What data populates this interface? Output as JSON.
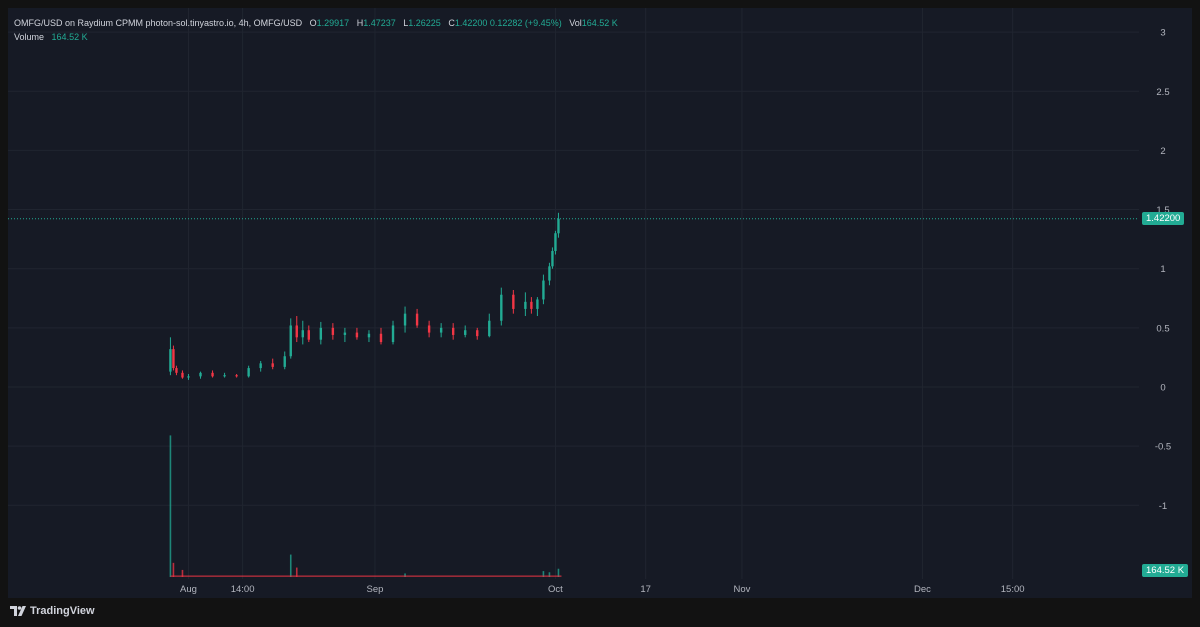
{
  "header": {
    "symbol_line": "OMFG/USD on Raydium CPMM photon-sol.tinyastro.io, 4h, OMFG/USD",
    "o_label": "O",
    "o_value": "1.29917",
    "h_label": "H",
    "h_value": "1.47237",
    "l_label": "L",
    "l_value": "1.26225",
    "c_label": "C",
    "c_value": "1.42200",
    "change": "0.12282 (+9.45%)",
    "vol_label": "Vol",
    "vol_value": "164.52 K",
    "volume_label": "Volume",
    "volume_value": "164.52 K"
  },
  "brand": {
    "name": "TradingView"
  },
  "colors": {
    "background": "#121212",
    "plot_background": "#161a25",
    "grid": "#202530",
    "up": "#22ab94",
    "down": "#f23645",
    "axis_text": "#b2b5be"
  },
  "price_tags": {
    "last_price": "1.42200",
    "last_volume": "164.52 K"
  },
  "chart_data": {
    "type": "candlestick",
    "y_axis": {
      "ticks": [
        3,
        2.5,
        2,
        1.5,
        1,
        0.5,
        0,
        -0.5,
        -1
      ],
      "tick_labels": [
        "3",
        "2.5",
        "2",
        "1.5",
        "1",
        "0.5",
        "0",
        "-0.5",
        "-1"
      ],
      "range": [
        -1.5,
        3.2
      ]
    },
    "x_axis": {
      "labels": [
        "Aug",
        "14:00",
        "Sep",
        "Oct",
        "17",
        "Nov",
        "Dec",
        "15:00"
      ],
      "label_days": [
        0,
        9,
        31,
        61,
        76,
        92,
        122,
        137
      ],
      "range_days": [
        -30,
        158
      ]
    },
    "grid": true,
    "ohlc_points": [
      {
        "day": -3.0,
        "open": 0.13,
        "high": 0.42,
        "low": 0.1,
        "close": 0.32
      },
      {
        "day": -2.5,
        "open": 0.32,
        "high": 0.35,
        "low": 0.14,
        "close": 0.16
      },
      {
        "day": -2.0,
        "open": 0.16,
        "high": 0.18,
        "low": 0.1,
        "close": 0.12
      },
      {
        "day": -1.0,
        "open": 0.12,
        "high": 0.14,
        "low": 0.07,
        "close": 0.08
      },
      {
        "day": 0.0,
        "open": 0.08,
        "high": 0.11,
        "low": 0.06,
        "close": 0.09
      },
      {
        "day": 2.0,
        "open": 0.09,
        "high": 0.13,
        "low": 0.07,
        "close": 0.12
      },
      {
        "day": 4.0,
        "open": 0.12,
        "high": 0.14,
        "low": 0.08,
        "close": 0.09
      },
      {
        "day": 6.0,
        "open": 0.09,
        "high": 0.12,
        "low": 0.08,
        "close": 0.1
      },
      {
        "day": 8.0,
        "open": 0.1,
        "high": 0.11,
        "low": 0.08,
        "close": 0.09
      },
      {
        "day": 10.0,
        "open": 0.09,
        "high": 0.18,
        "low": 0.08,
        "close": 0.16
      },
      {
        "day": 12.0,
        "open": 0.16,
        "high": 0.22,
        "low": 0.13,
        "close": 0.2
      },
      {
        "day": 14.0,
        "open": 0.2,
        "high": 0.24,
        "low": 0.15,
        "close": 0.17
      },
      {
        "day": 16.0,
        "open": 0.17,
        "high": 0.3,
        "low": 0.15,
        "close": 0.26
      },
      {
        "day": 17.0,
        "open": 0.26,
        "high": 0.58,
        "low": 0.24,
        "close": 0.52
      },
      {
        "day": 18.0,
        "open": 0.52,
        "high": 0.6,
        "low": 0.38,
        "close": 0.42
      },
      {
        "day": 19.0,
        "open": 0.42,
        "high": 0.56,
        "low": 0.36,
        "close": 0.48
      },
      {
        "day": 20.0,
        "open": 0.48,
        "high": 0.52,
        "low": 0.38,
        "close": 0.4
      },
      {
        "day": 22.0,
        "open": 0.4,
        "high": 0.55,
        "low": 0.36,
        "close": 0.5
      },
      {
        "day": 24.0,
        "open": 0.5,
        "high": 0.54,
        "low": 0.4,
        "close": 0.44
      },
      {
        "day": 26.0,
        "open": 0.44,
        "high": 0.5,
        "low": 0.38,
        "close": 0.46
      },
      {
        "day": 28.0,
        "open": 0.46,
        "high": 0.5,
        "low": 0.4,
        "close": 0.42
      },
      {
        "day": 30.0,
        "open": 0.42,
        "high": 0.48,
        "low": 0.38,
        "close": 0.45
      },
      {
        "day": 32.0,
        "open": 0.45,
        "high": 0.5,
        "low": 0.36,
        "close": 0.38
      },
      {
        "day": 34.0,
        "open": 0.38,
        "high": 0.56,
        "low": 0.36,
        "close": 0.52
      },
      {
        "day": 36.0,
        "open": 0.52,
        "high": 0.68,
        "low": 0.46,
        "close": 0.62
      },
      {
        "day": 38.0,
        "open": 0.62,
        "high": 0.66,
        "low": 0.5,
        "close": 0.52
      },
      {
        "day": 40.0,
        "open": 0.52,
        "high": 0.56,
        "low": 0.42,
        "close": 0.46
      },
      {
        "day": 42.0,
        "open": 0.46,
        "high": 0.54,
        "low": 0.42,
        "close": 0.5
      },
      {
        "day": 44.0,
        "open": 0.5,
        "high": 0.54,
        "low": 0.4,
        "close": 0.44
      },
      {
        "day": 46.0,
        "open": 0.44,
        "high": 0.52,
        "low": 0.42,
        "close": 0.48
      },
      {
        "day": 48.0,
        "open": 0.48,
        "high": 0.5,
        "low": 0.4,
        "close": 0.43
      },
      {
        "day": 50.0,
        "open": 0.43,
        "high": 0.62,
        "low": 0.42,
        "close": 0.56
      },
      {
        "day": 52.0,
        "open": 0.56,
        "high": 0.84,
        "low": 0.52,
        "close": 0.78
      },
      {
        "day": 54.0,
        "open": 0.78,
        "high": 0.82,
        "low": 0.62,
        "close": 0.66
      },
      {
        "day": 56.0,
        "open": 0.66,
        "high": 0.8,
        "low": 0.6,
        "close": 0.72
      },
      {
        "day": 57.0,
        "open": 0.72,
        "high": 0.76,
        "low": 0.62,
        "close": 0.66
      },
      {
        "day": 58.0,
        "open": 0.66,
        "high": 0.76,
        "low": 0.6,
        "close": 0.74
      },
      {
        "day": 59.0,
        "open": 0.74,
        "high": 0.95,
        "low": 0.7,
        "close": 0.9
      },
      {
        "day": 60.0,
        "open": 0.9,
        "high": 1.05,
        "low": 0.86,
        "close": 1.02
      },
      {
        "day": 60.5,
        "open": 1.02,
        "high": 1.18,
        "low": 1.0,
        "close": 1.15
      },
      {
        "day": 61.0,
        "open": 1.15,
        "high": 1.32,
        "low": 1.12,
        "close": 1.3
      },
      {
        "day": 61.5,
        "open": 1.29917,
        "high": 1.47237,
        "low": 1.26225,
        "close": 1.422
      }
    ],
    "volume_points": [
      {
        "day": -3.0,
        "value": 1.2,
        "up": true
      },
      {
        "day": -2.5,
        "value": 0.12,
        "up": false
      },
      {
        "day": -1.0,
        "value": 0.06,
        "up": false
      },
      {
        "day": 17.0,
        "value": 0.19,
        "up": true
      },
      {
        "day": 18.0,
        "value": 0.08,
        "up": false
      },
      {
        "day": 36.0,
        "value": 0.03,
        "up": true
      },
      {
        "day": 59.0,
        "value": 0.05,
        "up": true
      },
      {
        "day": 60.0,
        "value": 0.04,
        "up": true
      },
      {
        "day": 61.5,
        "value": 0.07,
        "up": true
      }
    ],
    "last_price": 1.422
  }
}
